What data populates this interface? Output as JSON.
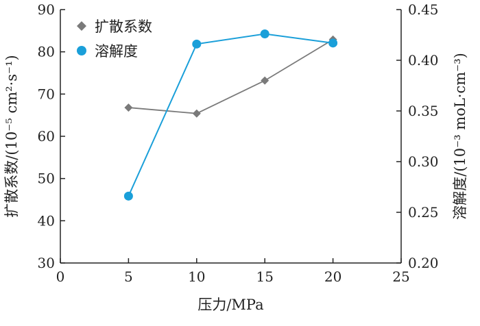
{
  "chart_data": {
    "type": "line",
    "x": [
      5,
      10,
      15,
      20
    ],
    "xlim": [
      0,
      25
    ],
    "xticks": [
      0,
      5,
      10,
      15,
      20,
      25
    ],
    "xlabel": "压力/MPa",
    "ylabel_left": "扩散系数/(10⁻⁵ cm²·s⁻¹)",
    "ylabel_right": "溶解度/(10⁻³ moL·cm⁻³)",
    "ylim_left": [
      30,
      90
    ],
    "yticks_left": [
      30,
      40,
      50,
      60,
      70,
      80,
      90
    ],
    "ylim_right": [
      0.2,
      0.45
    ],
    "yticks_right": [
      "0.20",
      "0.25",
      "0.30",
      "0.35",
      "0.40",
      "0.45"
    ],
    "grid": false,
    "legend_position": "top-left",
    "series": [
      {
        "name": "扩散系数",
        "axis": "left",
        "marker": "diamond",
        "color": "#7a7a7a",
        "values": [
          66.8,
          65.4,
          73.2,
          82.9
        ]
      },
      {
        "name": "溶解度",
        "axis": "right",
        "marker": "circle",
        "color": "#1a9fd9",
        "values": [
          0.266,
          0.416,
          0.426,
          0.417
        ]
      }
    ]
  }
}
